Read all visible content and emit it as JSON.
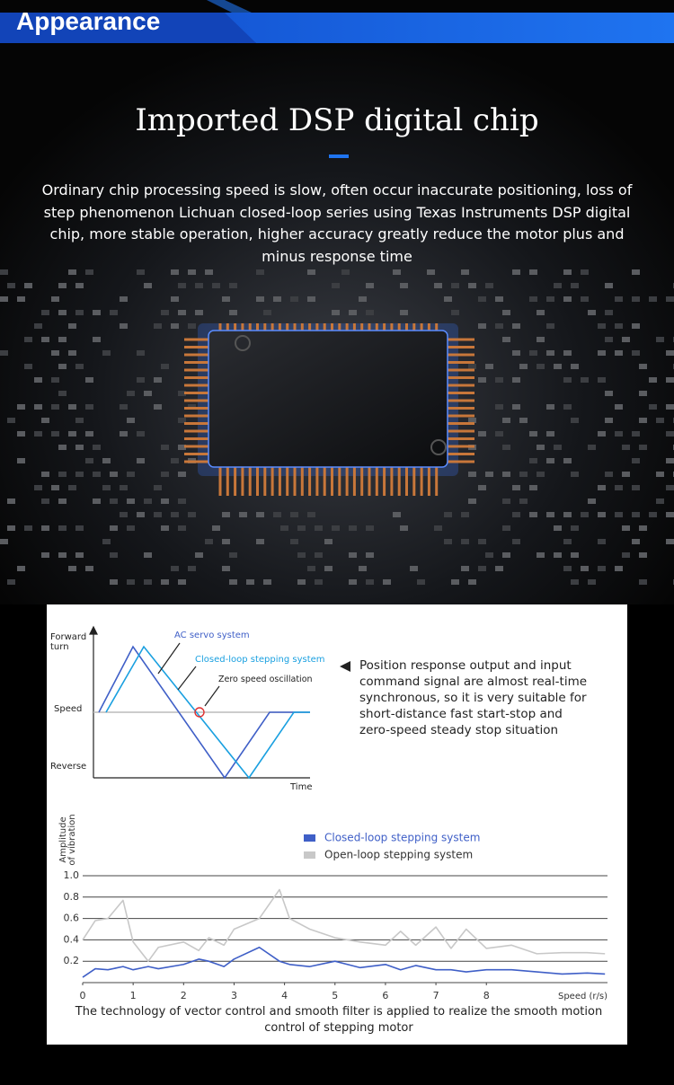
{
  "header": {
    "title": "Appearance"
  },
  "hero": {
    "title": "Imported DSP digital chip",
    "description": "Ordinary chip processing speed is slow, often occur inaccurate positioning, loss of step phenomenon Lichuan closed-loop series using Texas Instruments DSP digital chip, more stable operation, higher accuracy greatly reduce the motor plus and minus response time"
  },
  "response_diagram": {
    "y_top_label": "Forward turn",
    "y_mid_label": "Speed",
    "y_bottom_label": "Reverse",
    "x_label": "Time",
    "ac_servo_label": "AC servo system",
    "closed_loop_label": "Closed-loop stepping system",
    "oscillation_label": "Zero speed oscillation",
    "note": "Position response output and input command signal are almost real-time synchronous, so it is very suitable for short-distance fast start-stop and zero-speed steady stop situation"
  },
  "chart_data": {
    "type": "line",
    "y_label_line1": "Amplitude",
    "y_label_line2": "of vibration",
    "x_label": "Speed (r/s)",
    "x": [
      0,
      0.25,
      0.5,
      0.8,
      1.0,
      1.3,
      1.5,
      2.0,
      2.3,
      2.5,
      2.8,
      3.0,
      3.5,
      3.9,
      4.1,
      4.5,
      5.0,
      5.5,
      6.0,
      6.3,
      6.6,
      7.0,
      7.3,
      7.6,
      8.0,
      8.5,
      9.0,
      9.5,
      10.0,
      10.35
    ],
    "series": [
      {
        "name": "Closed-loop stepping system",
        "color": "#3f5fc7",
        "values": [
          0.05,
          0.13,
          0.12,
          0.15,
          0.12,
          0.15,
          0.13,
          0.17,
          0.22,
          0.2,
          0.15,
          0.22,
          0.33,
          0.2,
          0.17,
          0.15,
          0.2,
          0.14,
          0.17,
          0.12,
          0.16,
          0.12,
          0.12,
          0.1,
          0.12,
          0.12,
          0.1,
          0.08,
          0.09,
          0.08
        ]
      },
      {
        "name": "Open-loop stepping system",
        "color": "#c8c8c8",
        "values": [
          0.4,
          0.58,
          0.6,
          0.77,
          0.38,
          0.2,
          0.33,
          0.38,
          0.3,
          0.42,
          0.35,
          0.5,
          0.6,
          0.87,
          0.6,
          0.5,
          0.42,
          0.38,
          0.35,
          0.48,
          0.35,
          0.52,
          0.32,
          0.5,
          0.32,
          0.35,
          0.27,
          0.28,
          0.28,
          0.27
        ]
      }
    ],
    "xlim": [
      0,
      10.4
    ],
    "ylim": [
      0,
      1
    ],
    "xticks": [
      0,
      1,
      2,
      3,
      4,
      5,
      6,
      7,
      8
    ],
    "yticks": [
      0.2,
      0.4,
      0.6,
      0.8,
      {
        "value": 1,
        "label": "1.0"
      }
    ],
    "grid": true,
    "caption": "The technology of vector control and smooth filter is applied to realize the smooth motion control of stepping motor"
  }
}
